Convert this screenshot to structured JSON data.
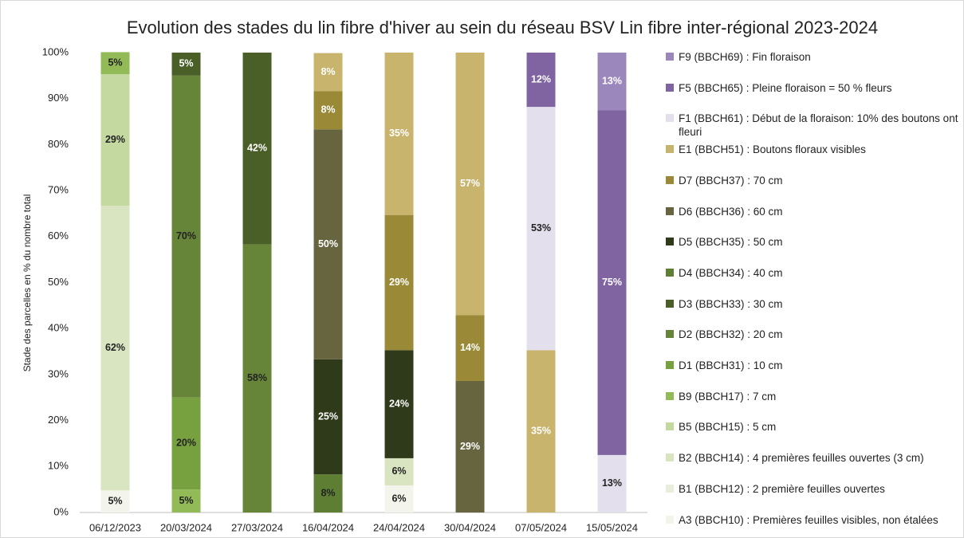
{
  "chart_data": {
    "type": "stacked_bar",
    "title": "Evolution des stades du lin fibre d'hiver au sein du réseau BSV Lin fibre inter-régional 2023-2024",
    "y_label": "Stade des parcelles en % du nombre total",
    "categories": [
      "06/12/2023",
      "20/03/2024",
      "27/03/2024",
      "16/04/2024",
      "24/04/2024",
      "30/04/2024",
      "07/05/2024",
      "15/05/2024"
    ],
    "ylim": [
      0,
      100
    ],
    "yticks": [
      {
        "value": 0,
        "label": "0%"
      },
      {
        "value": 10,
        "label": "10%"
      },
      {
        "value": 20,
        "label": "20%"
      },
      {
        "value": 30,
        "label": "30%"
      },
      {
        "value": 40,
        "label": "40%"
      },
      {
        "value": 50,
        "label": "50%"
      },
      {
        "value": 60,
        "label": "60%"
      },
      {
        "value": 70,
        "label": "70%"
      },
      {
        "value": 80,
        "label": "80%"
      },
      {
        "value": 90,
        "label": "90%"
      },
      {
        "value": 100,
        "label": "100%"
      }
    ],
    "grid": false,
    "legend": "right",
    "series": [
      {
        "name": "A3 (BBCH10) : Premières feuilles visibles, non étalées",
        "color": "#f3f5ec",
        "label_color": "#222",
        "values": [
          4.8,
          null,
          null,
          null,
          5.9,
          null,
          null,
          null
        ],
        "value_labels": [
          "5%",
          null,
          null,
          null,
          "6%",
          null,
          null,
          null
        ]
      },
      {
        "name": "B1 (BBCH12) : 2 première feuilles ouvertes",
        "color": "#e9eddc",
        "label_color": "#222",
        "values": [
          null,
          null,
          null,
          null,
          null,
          null,
          null,
          null
        ],
        "value_labels": [
          null,
          null,
          null,
          null,
          null,
          null,
          null,
          null
        ]
      },
      {
        "name": "B2 (BBCH14) : 4 premières feuilles ouvertes (3 cm)",
        "color": "#d9e4c0",
        "label_color": "#222",
        "values": [
          61.9,
          null,
          null,
          null,
          5.9,
          null,
          null,
          null
        ],
        "value_labels": [
          "62%",
          null,
          null,
          null,
          "6%",
          null,
          null,
          null
        ]
      },
      {
        "name": "B5 (BBCH15) : 5 cm",
        "color": "#c4d9a0",
        "label_color": "#222",
        "values": [
          28.6,
          null,
          null,
          null,
          null,
          null,
          null,
          null
        ],
        "value_labels": [
          "29%",
          null,
          null,
          null,
          null,
          null,
          null,
          null
        ]
      },
      {
        "name": "B9 (BBCH17) : 7 cm",
        "color": "#92bb58",
        "label_color": "#222",
        "values": [
          4.8,
          5,
          null,
          null,
          null,
          null,
          null,
          null
        ],
        "value_labels": [
          "5%",
          "5%",
          null,
          null,
          null,
          null,
          null,
          null
        ]
      },
      {
        "name": "D1 (BBCH31) : 10 cm",
        "color": "#77a03f",
        "label_color": "#222",
        "values": [
          null,
          20,
          null,
          null,
          null,
          null,
          null,
          null
        ],
        "value_labels": [
          null,
          "20%",
          null,
          null,
          null,
          null,
          null,
          null
        ]
      },
      {
        "name": "D2 (BBCH32) : 20 cm",
        "color": "#668538",
        "label_color": "#222",
        "values": [
          null,
          70,
          58.3,
          null,
          null,
          null,
          null,
          null
        ],
        "value_labels": [
          null,
          "70%",
          "58%",
          null,
          null,
          null,
          null,
          null
        ]
      },
      {
        "name": "D3 (BBCH33) : 30 cm",
        "color": "#4a5f27",
        "label_color": "#fff",
        "values": [
          null,
          5,
          41.7,
          null,
          null,
          null,
          null,
          null
        ],
        "value_labels": [
          null,
          "5%",
          "42%",
          null,
          null,
          null,
          null,
          null
        ]
      },
      {
        "name": "D4 (BBCH34) : 40 cm",
        "color": "#5e7e33",
        "label_color": "#222",
        "values": [
          null,
          null,
          null,
          8.3,
          null,
          null,
          null,
          null
        ],
        "value_labels": [
          null,
          null,
          null,
          "8%",
          null,
          null,
          null,
          null
        ]
      },
      {
        "name": "D5 (BBCH35) : 50 cm",
        "color": "#2e3a19",
        "label_color": "#fff",
        "values": [
          null,
          null,
          null,
          25,
          23.5,
          null,
          null,
          null
        ],
        "value_labels": [
          null,
          null,
          null,
          "25%",
          "24%",
          null,
          null,
          null
        ]
      },
      {
        "name": "D6 (BBCH36) : 60 cm",
        "color": "#676540",
        "label_color": "#fff",
        "values": [
          null,
          null,
          null,
          50,
          null,
          28.6,
          null,
          null
        ],
        "value_labels": [
          null,
          null,
          null,
          "50%",
          null,
          "29%",
          null,
          null
        ]
      },
      {
        "name": "D7 (BBCH37) : 70 cm",
        "color": "#9a8a38",
        "label_color": "#fff",
        "values": [
          null,
          null,
          null,
          8.3,
          29.4,
          14.3,
          null,
          null
        ],
        "value_labels": [
          null,
          null,
          null,
          "8%",
          "29%",
          "14%",
          null,
          null
        ]
      },
      {
        "name": "E1 (BBCH51) : Boutons floraux visibles",
        "color": "#c8b46d",
        "label_color": "#fff",
        "values": [
          null,
          null,
          null,
          8.3,
          35.3,
          57.1,
          35.3,
          null
        ],
        "value_labels": [
          null,
          null,
          null,
          "8%",
          "35%",
          "57%",
          "35%",
          null
        ]
      },
      {
        "name": "F1 (BBCH61) : Début de la floraison: 10% des boutons ont fleuri",
        "color": "#e4dfec",
        "label_color": "#222",
        "values": [
          null,
          null,
          null,
          null,
          null,
          null,
          52.9,
          12.5
        ],
        "value_labels": [
          null,
          null,
          null,
          null,
          null,
          null,
          "53%",
          "13%"
        ]
      },
      {
        "name": "F5 (BBCH65) : Pleine floraison = 50 % fleurs",
        "color": "#8064a2",
        "label_color": "#fff",
        "values": [
          null,
          null,
          null,
          null,
          null,
          null,
          11.8,
          75
        ],
        "value_labels": [
          null,
          null,
          null,
          null,
          null,
          null,
          "12%",
          "75%"
        ]
      },
      {
        "name": "F9 (BBCH69) : Fin floraison",
        "color": "#9b87bb",
        "label_color": "#fff",
        "values": [
          null,
          null,
          null,
          null,
          null,
          null,
          null,
          12.5
        ],
        "value_labels": [
          null,
          null,
          null,
          null,
          null,
          null,
          null,
          "13%"
        ]
      }
    ]
  }
}
